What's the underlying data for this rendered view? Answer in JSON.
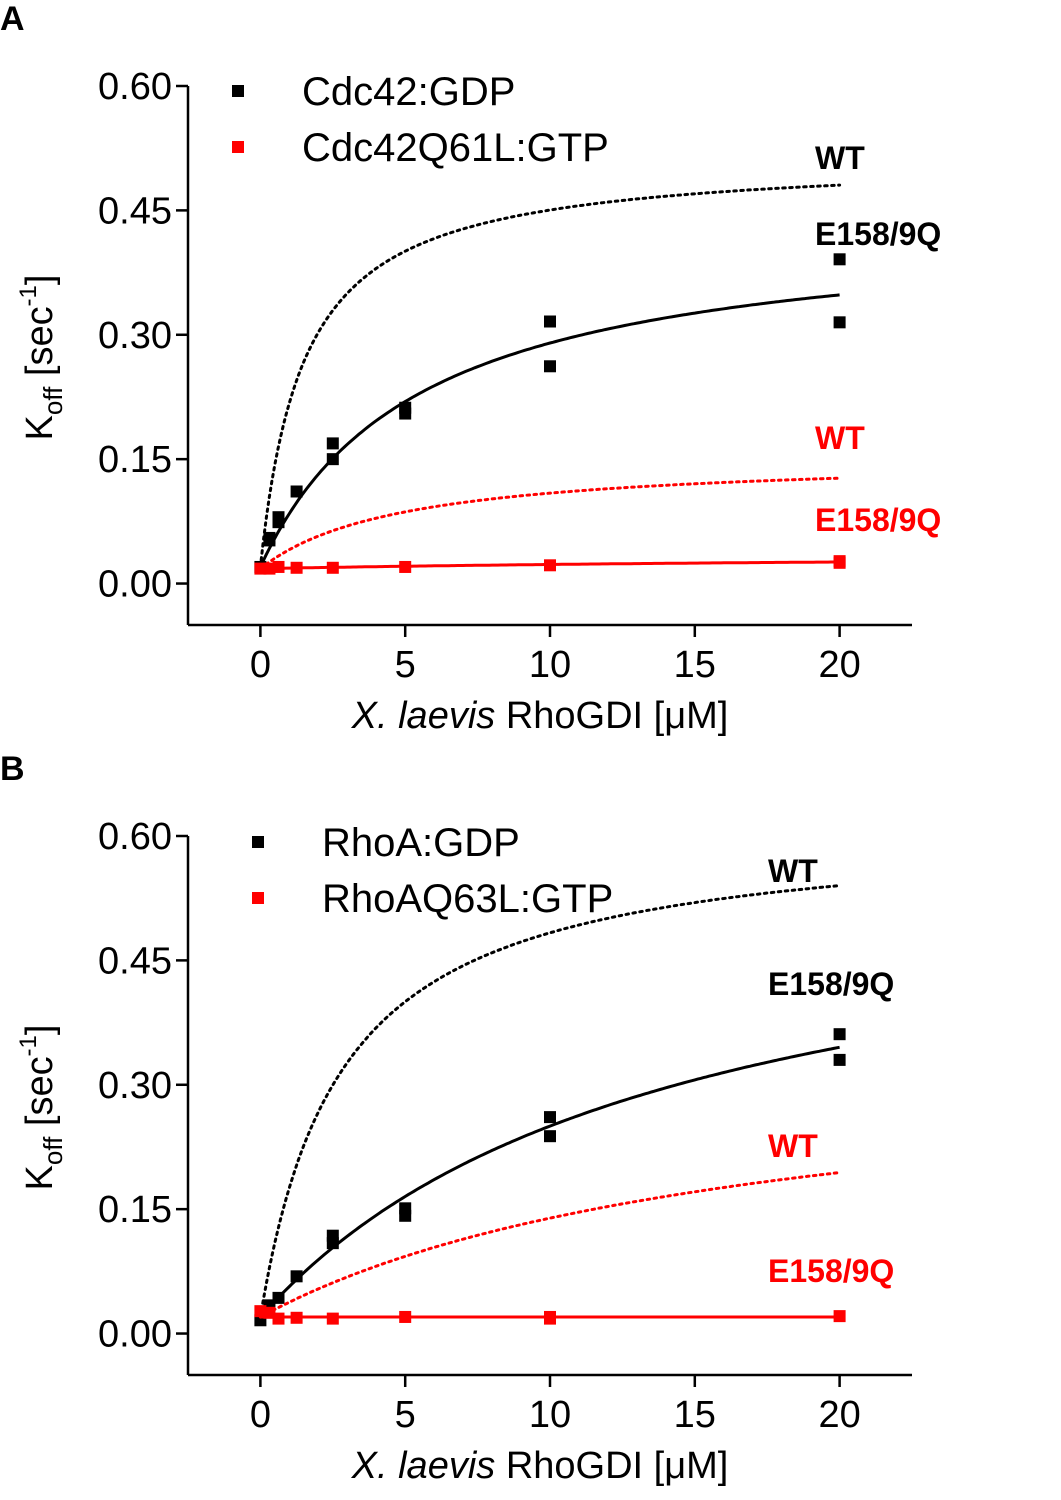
{
  "chart_data": [
    {
      "panel_label": "A",
      "type": "scatter",
      "xlabel_italic": "X. laevis",
      "xlabel_rest": " RhoGDI [μM]",
      "ylabel": "K",
      "ylabel_sub": "off",
      "ylabel_unit": " [sec",
      "ylabel_sup": "-1",
      "ylabel_close": "]",
      "xlim": [
        -2.5,
        22.5
      ],
      "ylim": [
        -0.05,
        0.6
      ],
      "xticks": [
        0,
        5,
        10,
        15,
        20
      ],
      "yticks": [
        "0.00",
        "0.15",
        "0.30",
        "0.45",
        "0.60"
      ],
      "legend_placement": "top-left",
      "series": [
        {
          "name": "Cdc42:GDP",
          "color": "#000000",
          "points": [
            [
              0,
              0.02
            ],
            [
              0.3125,
              0.052
            ],
            [
              0.3125,
              0.055
            ],
            [
              0.625,
              0.08
            ],
            [
              0.625,
              0.074
            ],
            [
              1.25,
              0.111
            ],
            [
              2.5,
              0.169
            ],
            [
              2.5,
              0.15
            ],
            [
              5,
              0.212
            ],
            [
              5,
              0.205
            ],
            [
              10,
              0.316
            ],
            [
              10,
              0.262
            ],
            [
              20,
              0.391
            ],
            [
              20,
              0.315
            ]
          ],
          "fits": [
            {
              "label": "WT",
              "style": "dotted",
              "k0": 0.02,
              "kmax": 0.495,
              "kd": 1.5
            },
            {
              "label": "E158/9Q",
              "style": "solid",
              "k0": 0.02,
              "kmax": 0.418,
              "kd": 5.48
            }
          ]
        },
        {
          "name": "Cdc42Q61L:GTP",
          "color": "#ff0000",
          "points": [
            [
              0,
              0.018
            ],
            [
              0.3125,
              0.018
            ],
            [
              0.625,
              0.02
            ],
            [
              1.25,
              0.019
            ],
            [
              2.5,
              0.019
            ],
            [
              5,
              0.02
            ],
            [
              10,
              0.022
            ],
            [
              20,
              0.027
            ],
            [
              20,
              0.025
            ]
          ],
          "fits": [
            {
              "label": "WT",
              "style": "dotted",
              "k0": 0.018,
              "kmax": 0.136,
              "kd": 4.94
            },
            {
              "label": "E158/9Q",
              "style": "solid",
              "k0": 0.018,
              "kmax": 0.02,
              "kd": 30
            }
          ]
        }
      ]
    },
    {
      "panel_label": "B",
      "type": "scatter",
      "xlabel_italic": "X. laevis",
      "xlabel_rest": " RhoGDI [μM]",
      "ylabel": "K",
      "ylabel_sub": "off",
      "ylabel_unit": " [sec",
      "ylabel_sup": "-1",
      "ylabel_close": "]",
      "xlim": [
        -2.5,
        22.5
      ],
      "ylim": [
        -0.05,
        0.6
      ],
      "xticks": [
        0,
        5,
        10,
        15,
        20
      ],
      "yticks": [
        "0.00",
        "0.15",
        "0.30",
        "0.45",
        "0.60"
      ],
      "legend_placement": "top-left",
      "series": [
        {
          "name": "RhoA:GDP",
          "color": "#000000",
          "points": [
            [
              0,
              0.016
            ],
            [
              0.3125,
              0.034
            ],
            [
              0.625,
              0.043
            ],
            [
              1.25,
              0.069
            ],
            [
              2.5,
              0.118
            ],
            [
              2.5,
              0.109
            ],
            [
              5,
              0.151
            ],
            [
              5,
              0.142
            ],
            [
              10,
              0.261
            ],
            [
              10,
              0.238
            ],
            [
              20,
              0.361
            ],
            [
              20,
              0.33
            ]
          ],
          "fits": [
            {
              "label": "WT",
              "style": "dotted",
              "k0": 0.02,
              "kmax": 0.593,
              "kd": 2.8
            },
            {
              "label": "E158/9Q",
              "style": "solid",
              "k0": 0.02,
              "kmax": 0.554,
              "kd": 14.07
            }
          ]
        },
        {
          "name": "RhoAQ63L:GTP",
          "color": "#ff0000",
          "points": [
            [
              0,
              0.027
            ],
            [
              0.3125,
              0.025
            ],
            [
              0.625,
              0.018
            ],
            [
              1.25,
              0.019
            ],
            [
              2.5,
              0.018
            ],
            [
              5,
              0.02
            ],
            [
              10,
              0.02
            ],
            [
              10,
              0.018
            ],
            [
              20,
              0.021
            ]
          ],
          "fits": [
            {
              "label": "WT",
              "style": "dotted",
              "k0": 0.02,
              "kmax": 0.323,
              "kd": 17.1
            },
            {
              "label": "E158/9Q",
              "style": "solid",
              "k0": 0.02,
              "kmax": 0.0,
              "kd": 10
            }
          ]
        }
      ]
    }
  ]
}
